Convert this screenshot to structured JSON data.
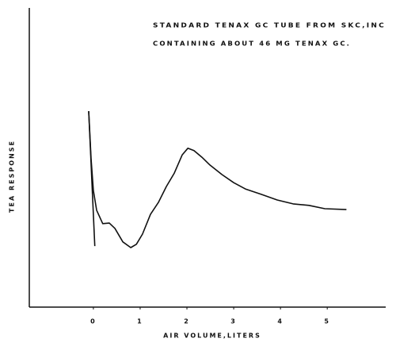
{
  "chart_data": {
    "type": "line",
    "annotations": [
      "STANDARD TENAX GC TUBE FROM SKC,INC",
      "CONTAINING ABOUT 46 MG TENAX GC."
    ],
    "x_label": "AIR VOLUME,LITERS",
    "y_label": "TEA RESPONSE",
    "xlim": [
      -1.37,
      6.25
    ],
    "xticks": [
      0,
      1,
      2,
      3,
      4,
      5
    ],
    "ylim": [
      0,
      100
    ],
    "grid": false,
    "series": [
      {
        "color": "#111111",
        "x": [
          -0.1,
          -0.05,
          0,
          0.07,
          0.2,
          0.34,
          0.46,
          0.63,
          0.8,
          0.92,
          1.05,
          1.22,
          1.39,
          1.56,
          1.73,
          1.9,
          2.02,
          2.15,
          2.32,
          2.49,
          2.75,
          3.0,
          3.25,
          3.59,
          3.93,
          4.27,
          4.61,
          4.95,
          5.41
        ],
        "values": [
          65.5,
          49.6,
          39.0,
          32.4,
          27.9,
          28.1,
          26.3,
          21.8,
          19.9,
          21.0,
          24.4,
          31.0,
          35.0,
          40.3,
          44.8,
          50.9,
          53.1,
          52.3,
          50.1,
          47.5,
          44.3,
          41.6,
          39.5,
          37.7,
          35.8,
          34.5,
          34.0,
          32.9,
          32.6
        ]
      },
      {
        "color": "#111111",
        "x": [
          -0.1,
          0.03
        ],
        "values": [
          65.5,
          20.4
        ]
      }
    ]
  }
}
